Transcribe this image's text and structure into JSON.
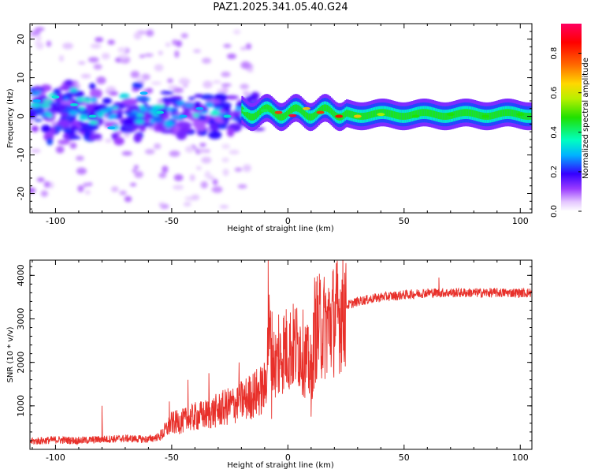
{
  "title": "PAZ1.2025.341.05.40.G24",
  "chart_data": [
    {
      "type": "heatmap",
      "xlabel": "Height of straight line (km)",
      "ylabel": "Frequency (Hz)",
      "xlim": [
        -111,
        105
      ],
      "ylim": [
        -25,
        24
      ],
      "xticks": [
        -100,
        -50,
        0,
        50,
        100
      ],
      "xtick_labels": [
        "-100",
        "-50",
        "0",
        "50",
        "100"
      ],
      "yticks": [
        -20,
        -10,
        0,
        10,
        20
      ],
      "ytick_labels": [
        "-20",
        "-10",
        "0",
        "10",
        "20"
      ],
      "colorbar": {
        "label": "Normalized spectral amplitude",
        "range": [
          0,
          0.95
        ],
        "ticks": [
          0.0,
          0.2,
          0.4,
          0.6,
          0.8
        ],
        "tick_labels": [
          "0.0",
          "0.2",
          "0.4",
          "0.6",
          "0.8"
        ]
      },
      "ridge": [
        {
          "x": -108,
          "y": 4,
          "a": 0.3
        },
        {
          "x": -100,
          "y": 5,
          "a": 0.35
        },
        {
          "x": -92,
          "y": 3,
          "a": 0.35
        },
        {
          "x": -84,
          "y": 0,
          "a": 0.35
        },
        {
          "x": -76,
          "y": -3,
          "a": 0.3
        },
        {
          "x": -62,
          "y": 6,
          "a": 0.3
        },
        {
          "x": -55,
          "y": 1,
          "a": 0.35
        },
        {
          "x": -45,
          "y": 0,
          "a": 0.3
        },
        {
          "x": -38,
          "y": 2,
          "a": 0.3
        },
        {
          "x": -26,
          "y": 0,
          "a": 0.35
        },
        {
          "x": -18,
          "y": 1.5,
          "a": 0.4
        },
        {
          "x": -10,
          "y": 1.5,
          "a": 0.45
        },
        {
          "x": -4,
          "y": 1,
          "a": 0.85
        },
        {
          "x": 2,
          "y": 0.2,
          "a": 0.95
        },
        {
          "x": 8,
          "y": 2,
          "a": 0.7
        },
        {
          "x": 14,
          "y": 1,
          "a": 0.85
        },
        {
          "x": 22,
          "y": 0,
          "a": 0.9
        },
        {
          "x": 30,
          "y": 0,
          "a": 0.7
        },
        {
          "x": 40,
          "y": 0.5,
          "a": 0.6
        },
        {
          "x": 55,
          "y": 0,
          "a": 0.5
        },
        {
          "x": 70,
          "y": 0.5,
          "a": 0.5
        },
        {
          "x": 85,
          "y": 0,
          "a": 0.5
        },
        {
          "x": 100,
          "y": 0.5,
          "a": 0.5
        }
      ]
    },
    {
      "type": "line",
      "xlabel": "Height of straight line (km)",
      "ylabel": "SNR (10 * v/v)",
      "xlim": [
        -111,
        105
      ],
      "ylim": [
        0,
        4350
      ],
      "xticks": [
        -100,
        -50,
        0,
        50,
        100
      ],
      "xtick_labels": [
        "-100",
        "-50",
        "0",
        "50",
        "100"
      ],
      "yticks": [
        1000,
        2000,
        3000,
        4000
      ],
      "ytick_labels": [
        "1000",
        "2000",
        "3000",
        "4000"
      ],
      "series": [
        {
          "name": "SNR",
          "color": "#e8302a",
          "x": [
            -111,
            -100,
            -90,
            -80,
            -70,
            -60,
            -55,
            -50,
            -45,
            -40,
            -35,
            -30,
            -25,
            -20,
            -15,
            -10,
            -8,
            -6,
            -4,
            -2,
            0,
            5,
            10,
            12,
            15,
            20,
            25,
            30,
            40,
            50,
            60,
            70,
            80,
            90,
            100,
            105
          ],
          "y": [
            180,
            220,
            200,
            230,
            250,
            230,
            300,
            600,
            650,
            750,
            800,
            900,
            1000,
            1100,
            1250,
            1400,
            2600,
            2000,
            2000,
            2300,
            2300,
            2400,
            1800,
            2800,
            2800,
            3000,
            3300,
            3400,
            3500,
            3550,
            3600,
            3600,
            3600,
            3600,
            3600,
            3600
          ]
        }
      ],
      "spikes": [
        {
          "x": -80,
          "y": 1000
        },
        {
          "x": -51,
          "y": 1100
        },
        {
          "x": -43,
          "y": 1600
        },
        {
          "x": -34,
          "y": 1750
        },
        {
          "x": -21,
          "y": 2000
        },
        {
          "x": -8.5,
          "y": 4350
        },
        {
          "x": -7,
          "y": 700
        },
        {
          "x": -4,
          "y": 3100
        },
        {
          "x": 10,
          "y": 750
        },
        {
          "x": 11.5,
          "y": 3950
        },
        {
          "x": 14,
          "y": 3900
        },
        {
          "x": 65,
          "y": 3950
        }
      ]
    }
  ]
}
